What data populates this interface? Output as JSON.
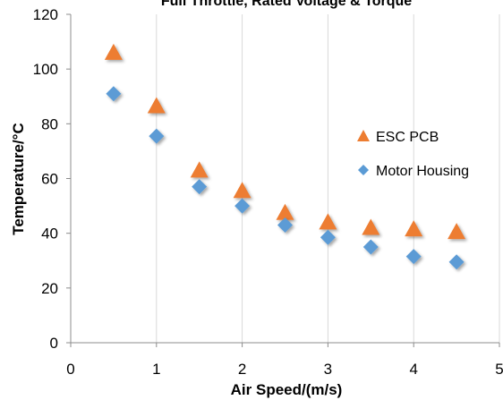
{
  "chart_data": {
    "type": "scatter",
    "title": "Full Throttle, Rated Voltage & Torque",
    "xlabel": "Air Speed/(m/s)",
    "ylabel": "Temperature/°C",
    "xlim": [
      0,
      5
    ],
    "ylim": [
      0,
      120
    ],
    "xticks": [
      "0",
      "1",
      "2",
      "3",
      "4",
      "5"
    ],
    "yticks": [
      "0",
      "20",
      "40",
      "60",
      "80",
      "100",
      "120"
    ],
    "grid": "vertical",
    "legend_position": "right",
    "series": [
      {
        "name": "ESC PCB",
        "marker": "triangle",
        "color": "#ED7D31",
        "x": [
          0.5,
          1.0,
          1.5,
          2.0,
          2.5,
          3.0,
          3.5,
          4.0,
          4.5
        ],
        "y": [
          106,
          86.5,
          63,
          55.5,
          47.5,
          44,
          42,
          41.5,
          40.5
        ]
      },
      {
        "name": "Motor Housing",
        "marker": "diamond",
        "color": "#5B9BD5",
        "x": [
          0.5,
          1.0,
          1.5,
          2.0,
          2.5,
          3.0,
          3.5,
          4.0,
          4.5
        ],
        "y": [
          91,
          75.5,
          57,
          50,
          43,
          38.5,
          35,
          31.5,
          29.5
        ]
      }
    ]
  }
}
